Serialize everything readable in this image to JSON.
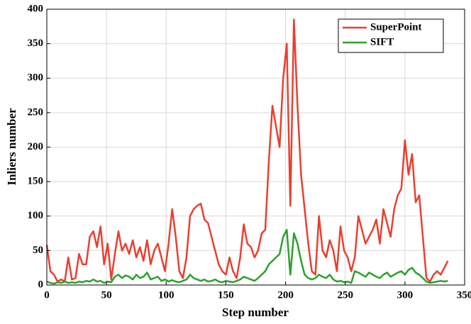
{
  "chart_data": {
    "type": "line",
    "xlabel": "Step number",
    "ylabel": "Inliers number",
    "x": [
      0,
      3,
      6,
      9,
      12,
      15,
      18,
      21,
      24,
      27,
      30,
      33,
      36,
      39,
      42,
      45,
      48,
      51,
      54,
      57,
      60,
      63,
      66,
      69,
      72,
      75,
      78,
      81,
      84,
      87,
      90,
      93,
      96,
      99,
      102,
      105,
      108,
      111,
      114,
      117,
      120,
      123,
      126,
      129,
      132,
      135,
      138,
      141,
      144,
      147,
      150,
      153,
      156,
      159,
      162,
      165,
      168,
      171,
      174,
      177,
      180,
      183,
      186,
      189,
      192,
      195,
      198,
      201,
      204,
      207,
      210,
      213,
      216,
      219,
      222,
      225,
      228,
      231,
      234,
      237,
      240,
      243,
      246,
      249,
      252,
      255,
      258,
      261,
      264,
      267,
      270,
      273,
      276,
      279,
      282,
      285,
      288,
      291,
      294,
      297,
      300,
      303,
      306,
      309,
      312,
      315,
      318,
      321,
      324,
      327,
      330,
      333,
      336
    ],
    "series": [
      {
        "name": "SuperPoint",
        "color": "#e8402f",
        "values": [
          58,
          20,
          15,
          5,
          8,
          5,
          40,
          8,
          10,
          45,
          30,
          30,
          70,
          78,
          55,
          85,
          30,
          60,
          8,
          45,
          78,
          50,
          60,
          45,
          65,
          40,
          55,
          35,
          65,
          30,
          50,
          60,
          40,
          20,
          60,
          110,
          70,
          20,
          10,
          40,
          100,
          110,
          115,
          118,
          95,
          90,
          70,
          50,
          30,
          20,
          15,
          40,
          20,
          10,
          40,
          88,
          60,
          55,
          40,
          50,
          75,
          80,
          180,
          260,
          230,
          200,
          300,
          350,
          115,
          385,
          260,
          160,
          110,
          60,
          20,
          15,
          100,
          50,
          40,
          65,
          50,
          20,
          85,
          50,
          40,
          20,
          40,
          100,
          80,
          60,
          70,
          80,
          95,
          60,
          110,
          90,
          70,
          110,
          130,
          140,
          210,
          160,
          190,
          120,
          130,
          70,
          10,
          5,
          15,
          20,
          15,
          25,
          35
        ]
      },
      {
        "name": "SIFT",
        "color": "#2ca02c",
        "values": [
          5,
          3,
          2,
          4,
          3,
          5,
          3,
          4,
          3,
          5,
          4,
          6,
          5,
          8,
          5,
          6,
          3,
          5,
          4,
          12,
          15,
          10,
          14,
          12,
          8,
          15,
          10,
          12,
          18,
          8,
          10,
          12,
          6,
          8,
          5,
          7,
          5,
          4,
          6,
          8,
          15,
          10,
          8,
          6,
          8,
          5,
          6,
          8,
          5,
          4,
          6,
          5,
          4,
          6,
          8,
          12,
          10,
          8,
          6,
          10,
          15,
          20,
          30,
          35,
          40,
          45,
          70,
          80,
          15,
          75,
          60,
          35,
          15,
          10,
          8,
          10,
          15,
          12,
          10,
          15,
          8,
          5,
          6,
          4,
          5,
          3,
          20,
          18,
          15,
          12,
          18,
          15,
          12,
          10,
          15,
          18,
          12,
          15,
          18,
          20,
          15,
          22,
          25,
          18,
          15,
          10,
          5,
          3,
          4,
          5,
          6,
          5,
          6
        ]
      }
    ],
    "xlim": [
      0,
      350
    ],
    "ylim": [
      0,
      400
    ],
    "xticks": [
      0,
      50,
      100,
      150,
      200,
      250,
      300,
      350
    ],
    "yticks": [
      0,
      50,
      100,
      150,
      200,
      250,
      300,
      350,
      400
    ],
    "grid": true,
    "legend": "upper right"
  }
}
